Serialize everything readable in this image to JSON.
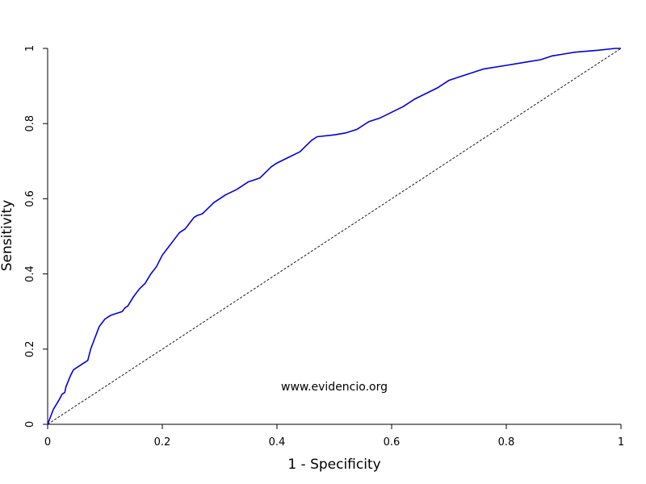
{
  "chart_data": {
    "type": "line",
    "title": "",
    "xlabel": "1 - Specificity",
    "ylabel": "Sensitivity",
    "xlim": [
      0,
      1
    ],
    "ylim": [
      0,
      1
    ],
    "x_ticks": [
      0,
      0.2,
      0.4,
      0.6,
      0.8,
      1
    ],
    "y_ticks": [
      0,
      0.2,
      0.4,
      0.6,
      0.8,
      1
    ],
    "x_tick_labels": [
      "0",
      "0.2",
      "0.4",
      "0.6",
      "0.8",
      "1"
    ],
    "y_tick_labels": [
      "0",
      "0.2",
      "0.4",
      "0.6",
      "0.8",
      "1"
    ],
    "grid": false,
    "annotation": "www.evidencio.org",
    "series": [
      {
        "name": "",
        "color": "#0000dd",
        "x": [
          0,
          0.01,
          0.02,
          0.025,
          0.03,
          0.032,
          0.04,
          0.045,
          0.05,
          0.055,
          0.06,
          0.07,
          0.075,
          0.08,
          0.09,
          0.1,
          0.105,
          0.11,
          0.12,
          0.13,
          0.135,
          0.14,
          0.15,
          0.16,
          0.17,
          0.18,
          0.19,
          0.2,
          0.21,
          0.22,
          0.23,
          0.24,
          0.25,
          0.255,
          0.26,
          0.27,
          0.28,
          0.29,
          0.3,
          0.31,
          0.33,
          0.35,
          0.36,
          0.37,
          0.38,
          0.39,
          0.4,
          0.42,
          0.44,
          0.45,
          0.46,
          0.47,
          0.5,
          0.52,
          0.54,
          0.55,
          0.56,
          0.58,
          0.6,
          0.62,
          0.64,
          0.66,
          0.68,
          0.7,
          0.72,
          0.74,
          0.76,
          0.8,
          0.84,
          0.86,
          0.88,
          0.9,
          0.92,
          0.96,
          0.99,
          1
        ],
        "y": [
          0,
          0.04,
          0.065,
          0.08,
          0.085,
          0.1,
          0.13,
          0.145,
          0.15,
          0.155,
          0.16,
          0.17,
          0.2,
          0.22,
          0.26,
          0.28,
          0.285,
          0.29,
          0.295,
          0.3,
          0.31,
          0.315,
          0.34,
          0.36,
          0.375,
          0.4,
          0.42,
          0.45,
          0.47,
          0.49,
          0.51,
          0.52,
          0.54,
          0.55,
          0.555,
          0.56,
          0.575,
          0.59,
          0.6,
          0.61,
          0.625,
          0.645,
          0.65,
          0.655,
          0.67,
          0.685,
          0.695,
          0.71,
          0.725,
          0.74,
          0.755,
          0.765,
          0.77,
          0.775,
          0.785,
          0.795,
          0.805,
          0.815,
          0.83,
          0.845,
          0.865,
          0.88,
          0.895,
          0.915,
          0.925,
          0.935,
          0.945,
          0.955,
          0.965,
          0.97,
          0.98,
          0.985,
          0.99,
          0.995,
          1,
          1
        ]
      }
    ],
    "reference_line": {
      "from": [
        0,
        0
      ],
      "to": [
        1,
        1
      ],
      "style": "dashed",
      "color": "#000000"
    }
  }
}
